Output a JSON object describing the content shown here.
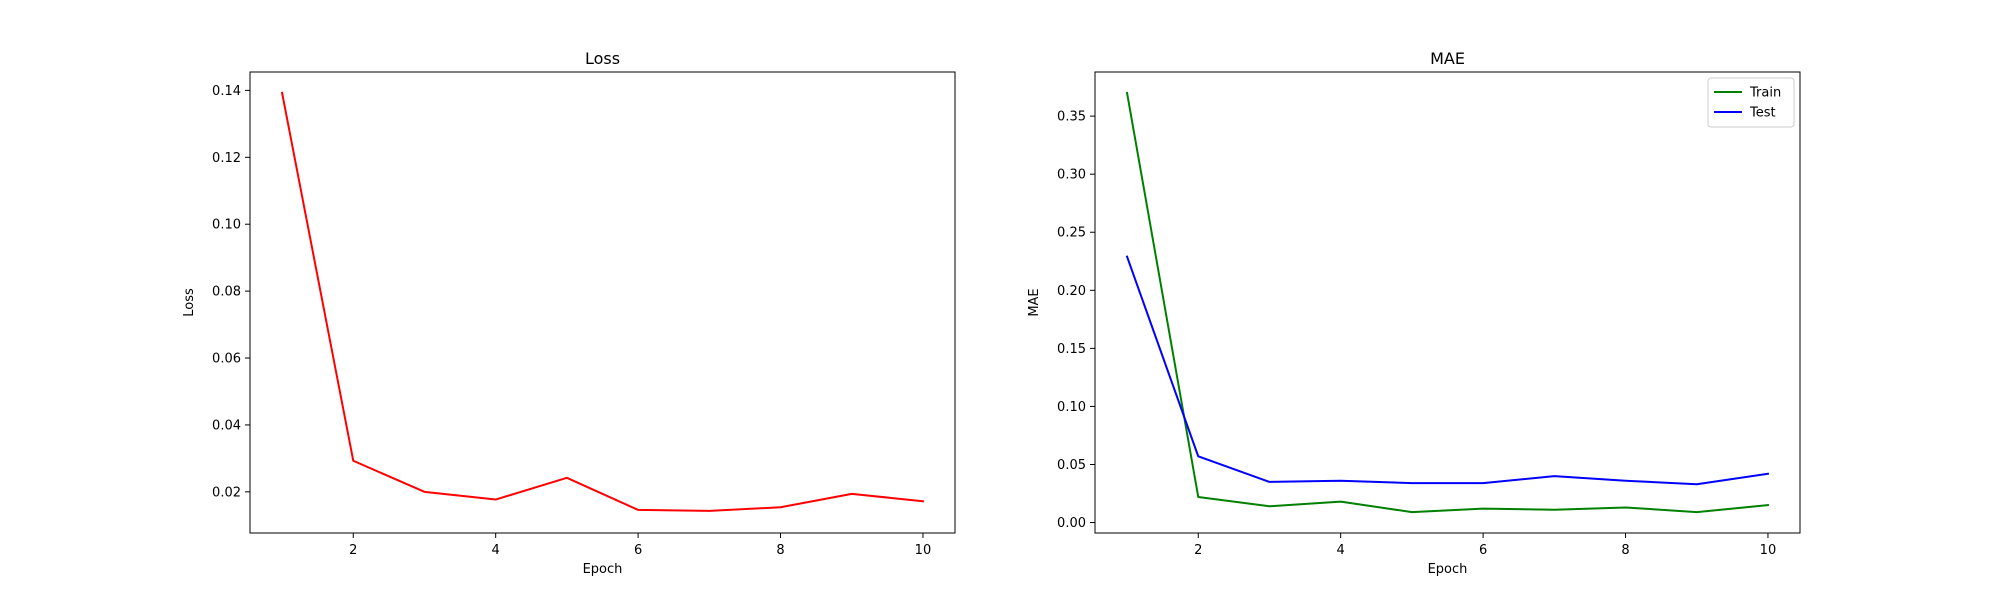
{
  "chart_data": [
    {
      "type": "line",
      "title": "Loss",
      "xlabel": "Epoch",
      "ylabel": "Loss",
      "x": [
        1,
        2,
        3,
        4,
        5,
        6,
        7,
        8,
        9,
        10
      ],
      "xticks": [
        2,
        4,
        6,
        8,
        10
      ],
      "xtick_labels": [
        "2",
        "4",
        "6",
        "8",
        "10"
      ],
      "xlim": [
        0.55,
        10.45
      ],
      "yticks": [
        0.02,
        0.04,
        0.06,
        0.08,
        0.1,
        0.12,
        0.14
      ],
      "ytick_labels": [
        "0.02",
        "0.04",
        "0.06",
        "0.08",
        "0.10",
        "0.12",
        "0.14"
      ],
      "ylim": [
        0.0077,
        0.1455
      ],
      "grid": false,
      "legend": null,
      "series": [
        {
          "values": [
            0.1393,
            0.0293,
            0.02,
            0.0177,
            0.0242,
            0.0146,
            0.0143,
            0.0154,
            0.0194,
            0.0172
          ],
          "color": "#ff0000"
        }
      ]
    },
    {
      "type": "line",
      "title": "MAE",
      "xlabel": "Epoch",
      "ylabel": "MAE",
      "x": [
        1,
        2,
        3,
        4,
        5,
        6,
        7,
        8,
        9,
        10
      ],
      "xticks": [
        2,
        4,
        6,
        8,
        10
      ],
      "xtick_labels": [
        "2",
        "4",
        "6",
        "8",
        "10"
      ],
      "xlim": [
        0.55,
        10.45
      ],
      "yticks": [
        0.0,
        0.05,
        0.1,
        0.15,
        0.2,
        0.25,
        0.3,
        0.35
      ],
      "ytick_labels": [
        "0.00",
        "0.05",
        "0.10",
        "0.15",
        "0.20",
        "0.25",
        "0.30",
        "0.35"
      ],
      "ylim": [
        -0.009,
        0.388
      ],
      "grid": false,
      "legend": "top-right",
      "series": [
        {
          "name": "Train",
          "values": [
            0.37,
            0.022,
            0.014,
            0.018,
            0.009,
            0.012,
            0.011,
            0.013,
            0.009,
            0.015
          ],
          "color": "#008000"
        },
        {
          "name": "Test",
          "values": [
            0.229,
            0.057,
            0.035,
            0.036,
            0.034,
            0.034,
            0.04,
            0.036,
            0.033,
            0.042
          ],
          "color": "#0000ff"
        }
      ]
    }
  ]
}
